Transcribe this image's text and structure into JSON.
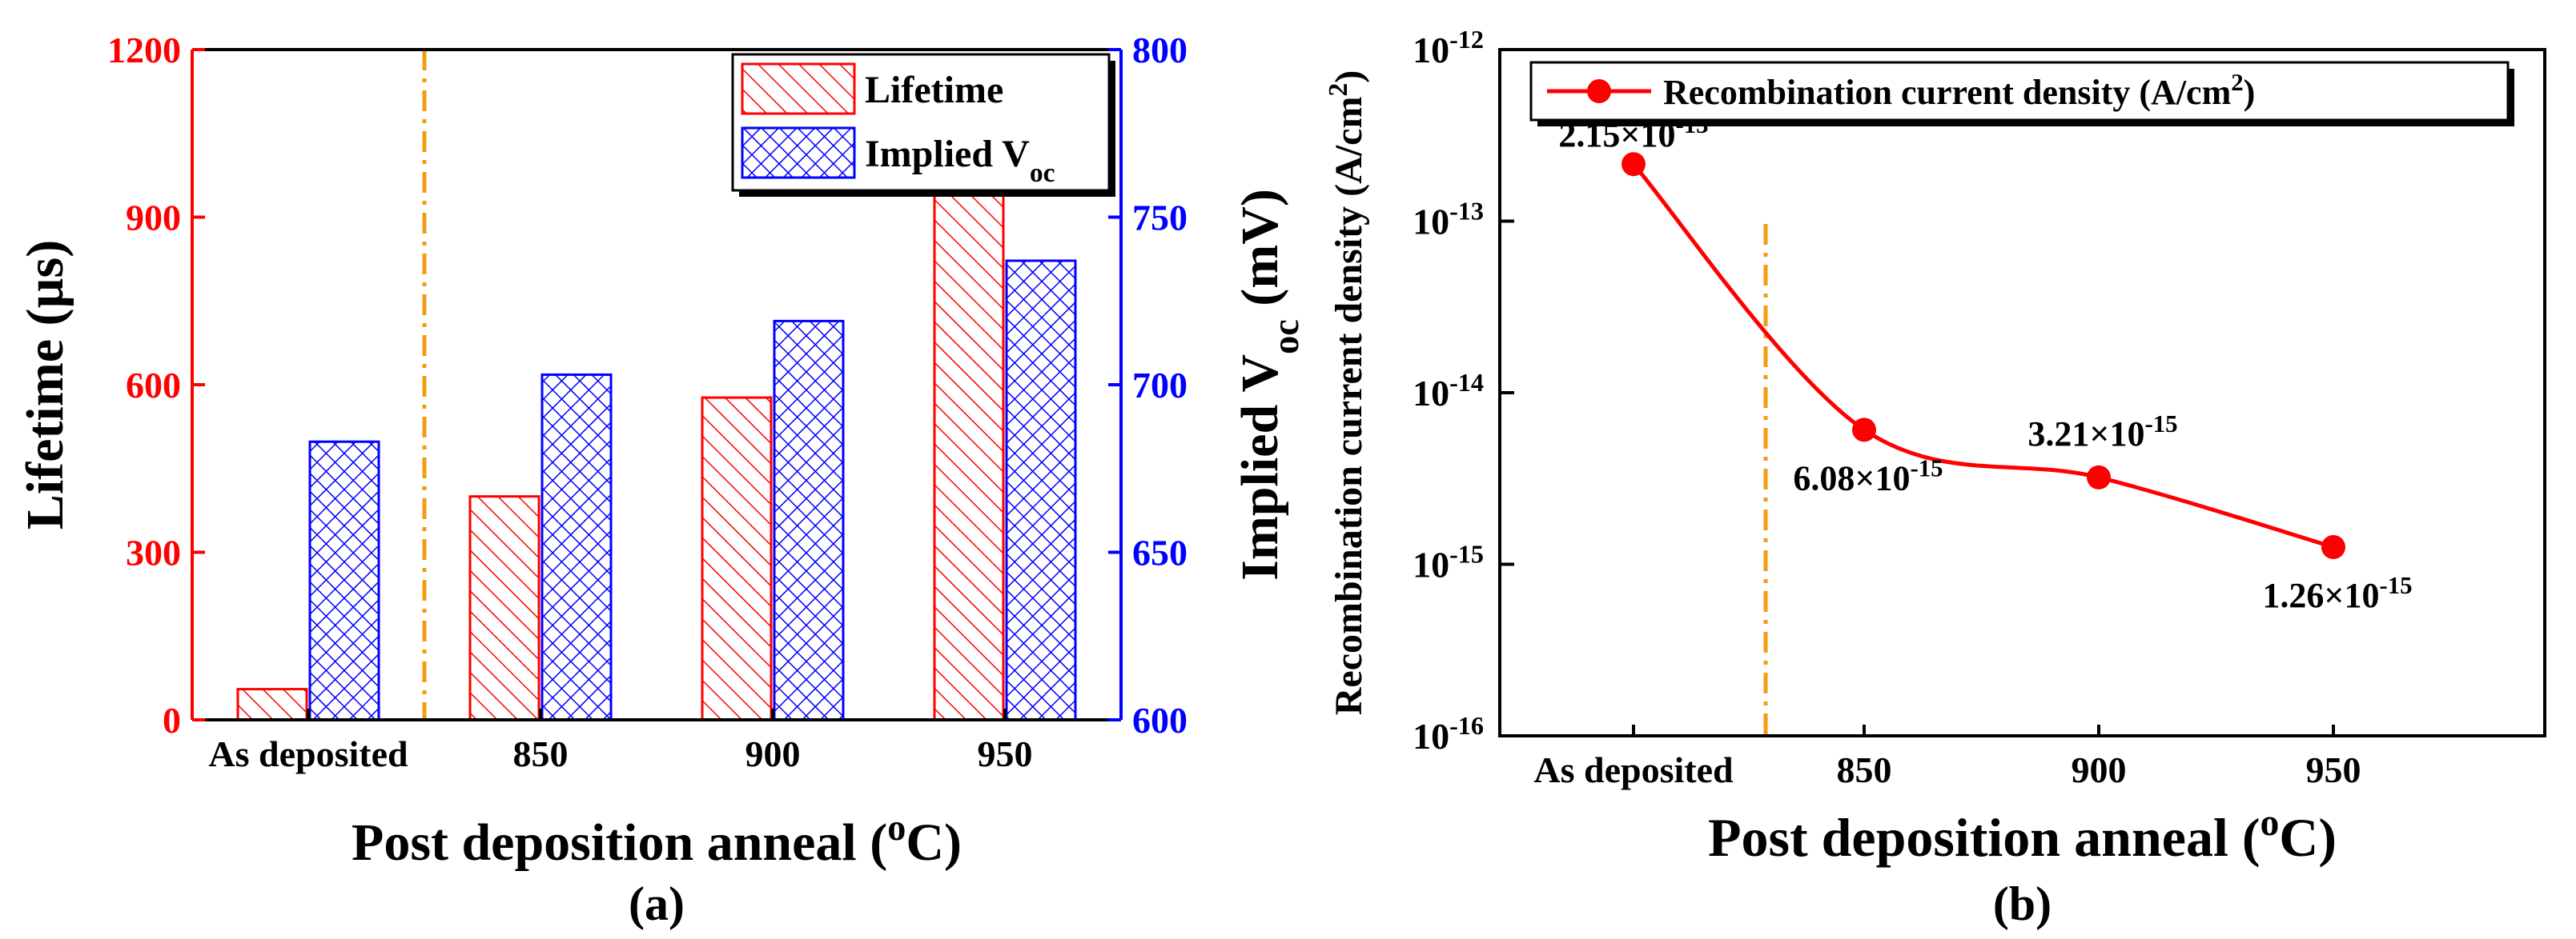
{
  "chart_data": [
    {
      "id": "a",
      "type": "bar",
      "panel_label": "(a)",
      "categories": [
        "As deposited",
        "850",
        "900",
        "950"
      ],
      "xlabel": "Post deposition anneal (",
      "xlabel_sup": "o",
      "xlabel_tail": "C)",
      "ylabel_left": "Lifetime (µs)",
      "ylabel_right": "Implied V",
      "ylabel_right_sub": "oc",
      "ylabel_right_tail": " (mV)",
      "ylim_left": [
        0,
        1200
      ],
      "yticks_left": [
        "0",
        "300",
        "600",
        "900",
        "1200"
      ],
      "ylim_right": [
        600,
        800
      ],
      "yticks_right": [
        "600",
        "650",
        "700",
        "750",
        "800"
      ],
      "separator_after_category": 0,
      "series": [
        {
          "name": "Lifetime",
          "axis": "left",
          "color": "#ff0000",
          "values": [
            55,
            400,
            577,
            945
          ]
        },
        {
          "name": "Implied V",
          "name_sub": "oc",
          "axis": "right",
          "color": "#0000ff",
          "values": [
            683,
            703,
            719,
            737
          ]
        }
      ],
      "legend": {
        "entries": [
          "Lifetime",
          "Implied V"
        ],
        "sub": "oc",
        "placement": "top-right"
      }
    },
    {
      "id": "b",
      "type": "line",
      "panel_label": "(b)",
      "categories": [
        "As deposited",
        "850",
        "900",
        "950"
      ],
      "xlabel": "Post deposition anneal (",
      "xlabel_sup": "o",
      "xlabel_tail": "C)",
      "ylabel": "Recombination current density (A/cm",
      "ylabel_sup": "2",
      "ylabel_tail": ")",
      "yscale": "log",
      "ylim": [
        1e-16,
        1e-12
      ],
      "yticks": [
        {
          "base": "10",
          "exp": "-16"
        },
        {
          "base": "10",
          "exp": "-15"
        },
        {
          "base": "10",
          "exp": "-14"
        },
        {
          "base": "10",
          "exp": "-13"
        },
        {
          "base": "10",
          "exp": "-12"
        }
      ],
      "separator_after_category": 0,
      "series": [
        {
          "name": "Recombination current density (A/cm",
          "name_sup": "2",
          "name_tail": ")",
          "color": "#ff0000",
          "values": [
            2.15e-13,
            6.08e-15,
            3.21e-15,
            1.26e-15
          ]
        }
      ],
      "annotations": [
        {
          "mantissa": "2.15×10",
          "exp": "-13"
        },
        {
          "mantissa": "6.08×10",
          "exp": "-15"
        },
        {
          "mantissa": "3.21×10",
          "exp": "-15"
        },
        {
          "mantissa": "1.26×10",
          "exp": "-15"
        }
      ],
      "legend": {
        "placement": "top"
      }
    }
  ]
}
